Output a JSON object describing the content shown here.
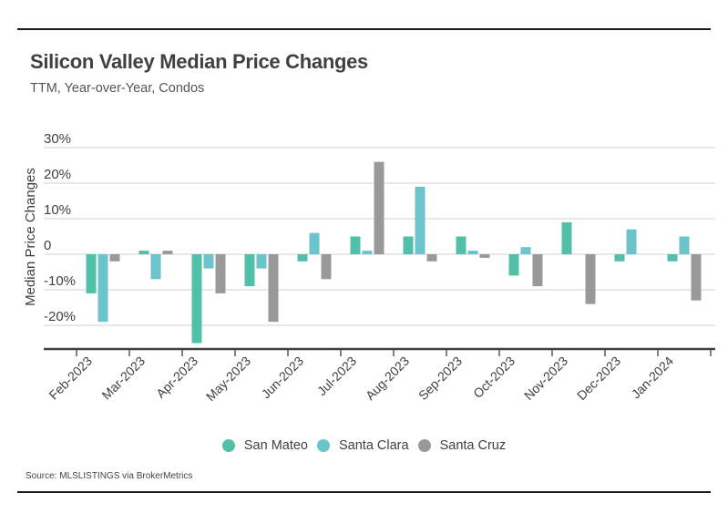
{
  "header": {
    "title": "Silicon Valley Median Price Changes",
    "subtitle": "TTM, Year-over-Year, Condos"
  },
  "footer": {
    "source": "Source:  MLSLISTINGS via BrokerMetrics"
  },
  "chart_data": {
    "type": "bar",
    "title": "Silicon Valley Median Price Changes",
    "subtitle": "TTM, Year-over-Year, Condos",
    "xlabel": "",
    "ylabel": "Median Price Changes",
    "ylim": [
      -26,
      30
    ],
    "yticks": [
      -20,
      -10,
      0,
      10,
      20,
      30
    ],
    "ytick_labels": [
      "-20%",
      "-10%",
      "0",
      "10%",
      "20%",
      "30%"
    ],
    "grid": true,
    "legend_position": "bottom",
    "categories": [
      "Feb-2023",
      "Mar-2023",
      "Apr-2023",
      "May-2023",
      "Jun-2023",
      "Jul-2023",
      "Aug-2023",
      "Sep-2023",
      "Oct-2023",
      "Nov-2023",
      "Dec-2023",
      "Jan-2024"
    ],
    "series": [
      {
        "name": "San Mateo",
        "color": "#52BFA8",
        "values": [
          -11,
          1,
          -25,
          -9,
          -2,
          5,
          5,
          5,
          -6,
          9,
          -2,
          -2
        ]
      },
      {
        "name": "Santa Clara",
        "color": "#6BC3CC",
        "values": [
          -19,
          -7,
          -4,
          -4,
          6,
          1,
          19,
          1,
          2,
          0,
          7,
          5
        ]
      },
      {
        "name": "Santa Cruz",
        "color": "#999999",
        "values": [
          -2,
          1,
          -11,
          -19,
          -7,
          26,
          -2,
          -1,
          -9,
          -14,
          0,
          -13
        ]
      }
    ],
    "source": "Source:  MLSLISTINGS via BrokerMetrics"
  }
}
